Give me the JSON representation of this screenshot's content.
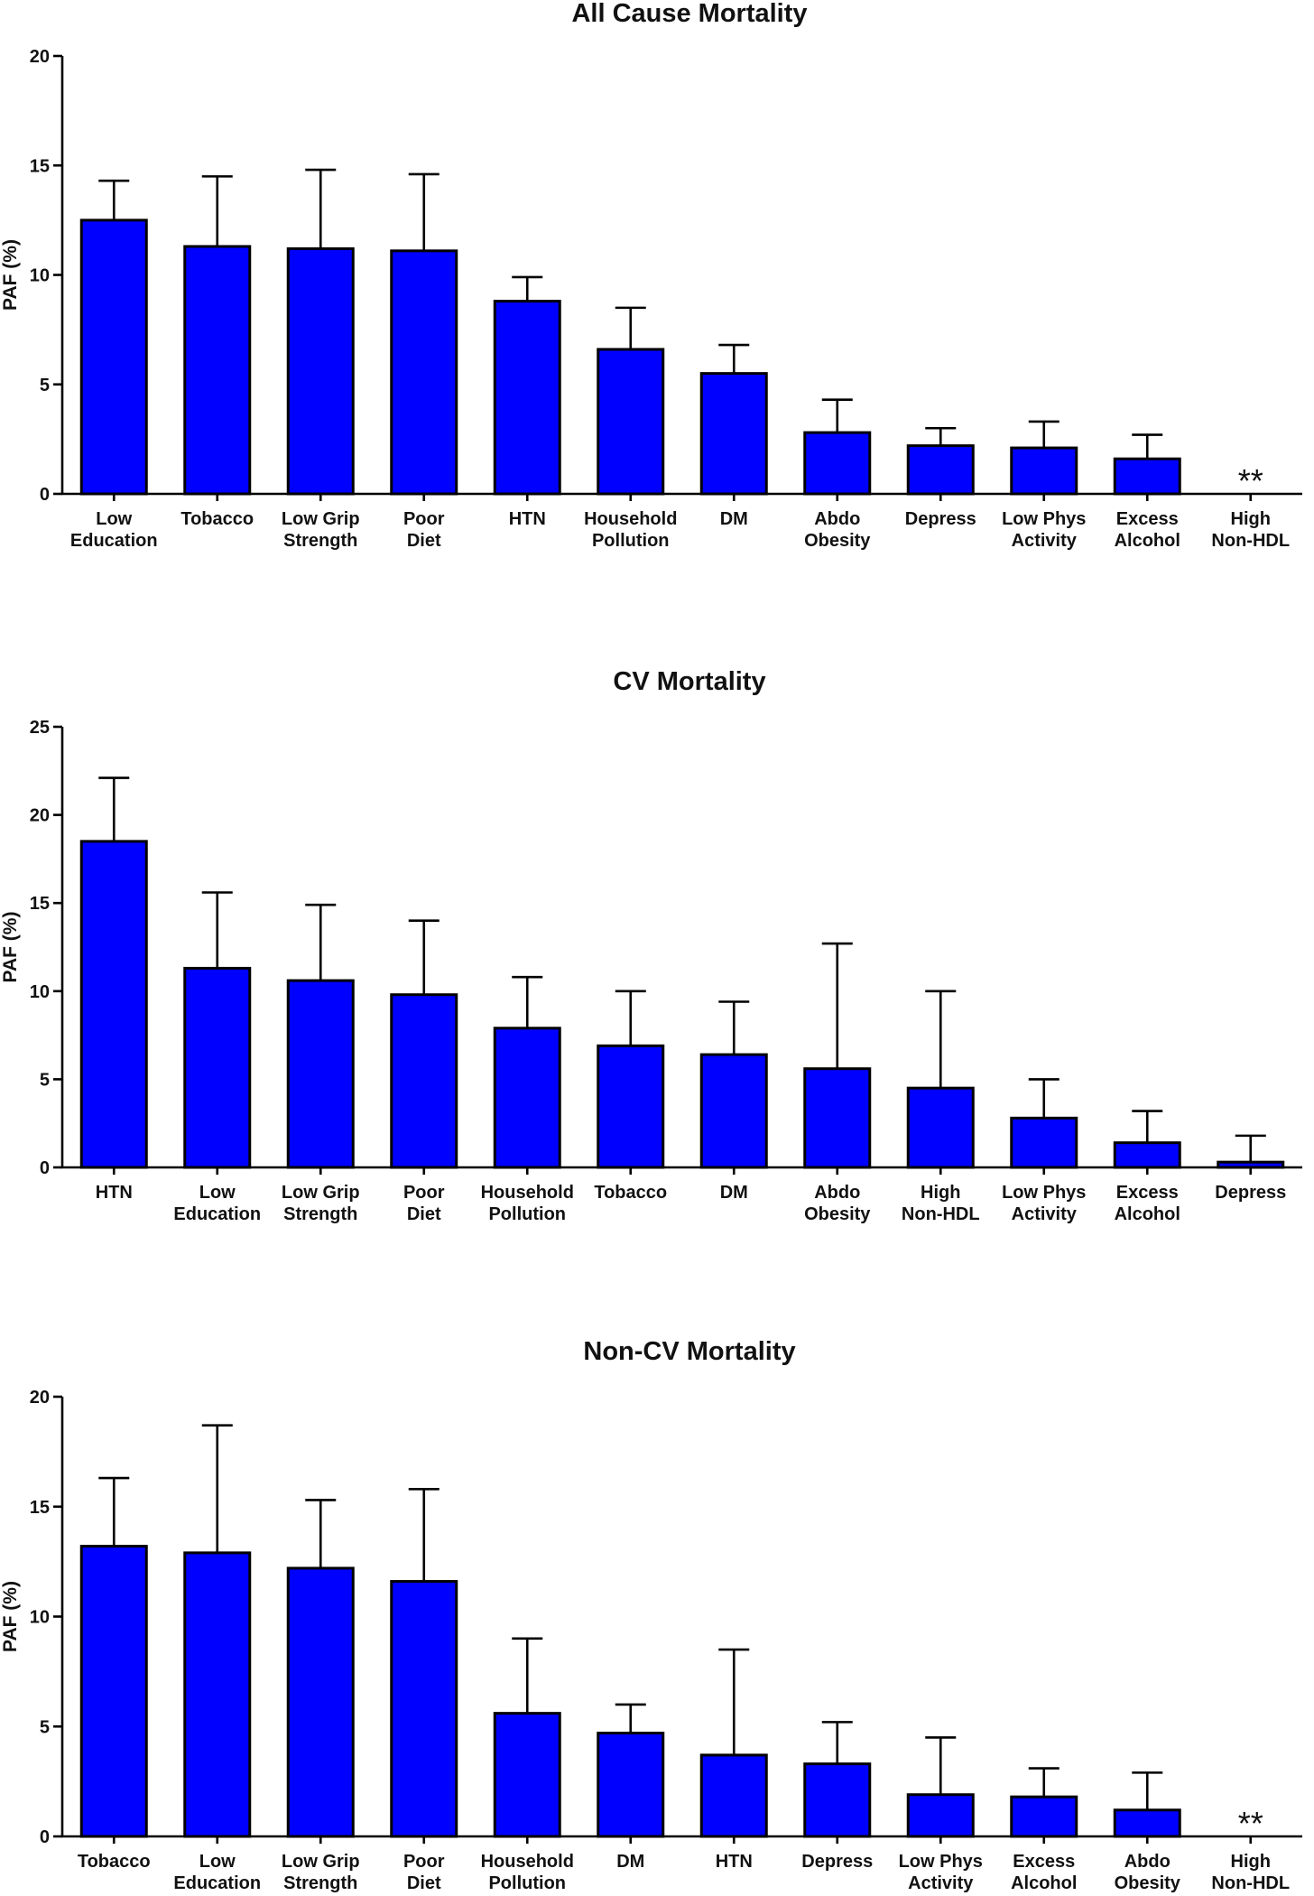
{
  "colors": {
    "bar": "#0000FF",
    "axis": "#000000",
    "text": "#111111"
  },
  "chart_data": [
    {
      "type": "bar",
      "title": "All Cause Mortality",
      "ylabel": "PAF (%)",
      "xlabel": "",
      "ylim": [
        0,
        20
      ],
      "yticks": [
        0,
        5,
        10,
        15,
        20
      ],
      "categories": [
        [
          "Low",
          "Education"
        ],
        [
          "Tobacco"
        ],
        [
          "Low Grip",
          "Strength"
        ],
        [
          "Poor",
          "Diet"
        ],
        [
          "HTN"
        ],
        [
          "Household",
          "Pollution"
        ],
        [
          "DM"
        ],
        [
          "Abdo",
          "Obesity"
        ],
        [
          "Depress"
        ],
        [
          "Low Phys",
          "Activity"
        ],
        [
          "Excess",
          "Alcohol"
        ],
        [
          "High",
          "Non-HDL"
        ]
      ],
      "values": [
        12.5,
        11.3,
        11.2,
        11.1,
        8.8,
        6.6,
        5.5,
        2.8,
        2.2,
        2.1,
        1.6,
        null
      ],
      "error_upper": [
        14.3,
        14.5,
        14.8,
        14.6,
        9.9,
        8.5,
        6.8,
        4.3,
        3.0,
        3.3,
        2.7,
        null
      ],
      "na_marker": "**"
    },
    {
      "type": "bar",
      "title": "CV Mortality",
      "ylabel": "PAF (%)",
      "xlabel": "",
      "ylim": [
        0,
        25
      ],
      "yticks": [
        0,
        5,
        10,
        15,
        20,
        25
      ],
      "categories": [
        [
          "HTN"
        ],
        [
          "Low",
          "Education"
        ],
        [
          "Low Grip",
          "Strength"
        ],
        [
          "Poor",
          "Diet"
        ],
        [
          "Household",
          "Pollution"
        ],
        [
          "Tobacco"
        ],
        [
          "DM"
        ],
        [
          "Abdo",
          "Obesity"
        ],
        [
          "High",
          "Non-HDL"
        ],
        [
          "Low Phys",
          "Activity"
        ],
        [
          "Excess",
          "Alcohol"
        ],
        [
          "Depress"
        ]
      ],
      "values": [
        18.5,
        11.3,
        10.6,
        9.8,
        7.9,
        6.9,
        6.4,
        5.6,
        4.5,
        2.8,
        1.4,
        0.3
      ],
      "error_upper": [
        22.1,
        15.6,
        14.9,
        14.0,
        10.8,
        10.0,
        9.4,
        12.7,
        10.0,
        5.0,
        3.2,
        1.8
      ],
      "na_marker": ""
    },
    {
      "type": "bar",
      "title": "Non-CV Mortality",
      "ylabel": "PAF (%)",
      "xlabel": "",
      "ylim": [
        0,
        20
      ],
      "yticks": [
        0,
        5,
        10,
        15,
        20
      ],
      "categories": [
        [
          "Tobacco"
        ],
        [
          "Low",
          "Education"
        ],
        [
          "Low Grip",
          "Strength"
        ],
        [
          "Poor",
          "Diet"
        ],
        [
          "Household",
          "Pollution"
        ],
        [
          "DM"
        ],
        [
          "HTN"
        ],
        [
          "Depress"
        ],
        [
          "Low Phys",
          "Activity"
        ],
        [
          "Excess",
          "Alcohol"
        ],
        [
          "Abdo",
          "Obesity"
        ],
        [
          "High",
          "Non-HDL"
        ]
      ],
      "values": [
        13.2,
        12.9,
        12.2,
        11.6,
        5.6,
        4.7,
        3.7,
        3.3,
        1.9,
        1.8,
        1.2,
        null
      ],
      "error_upper": [
        16.3,
        18.7,
        15.3,
        15.8,
        9.0,
        6.0,
        8.5,
        5.2,
        4.5,
        3.1,
        2.9,
        null
      ],
      "na_marker": "**"
    }
  ]
}
